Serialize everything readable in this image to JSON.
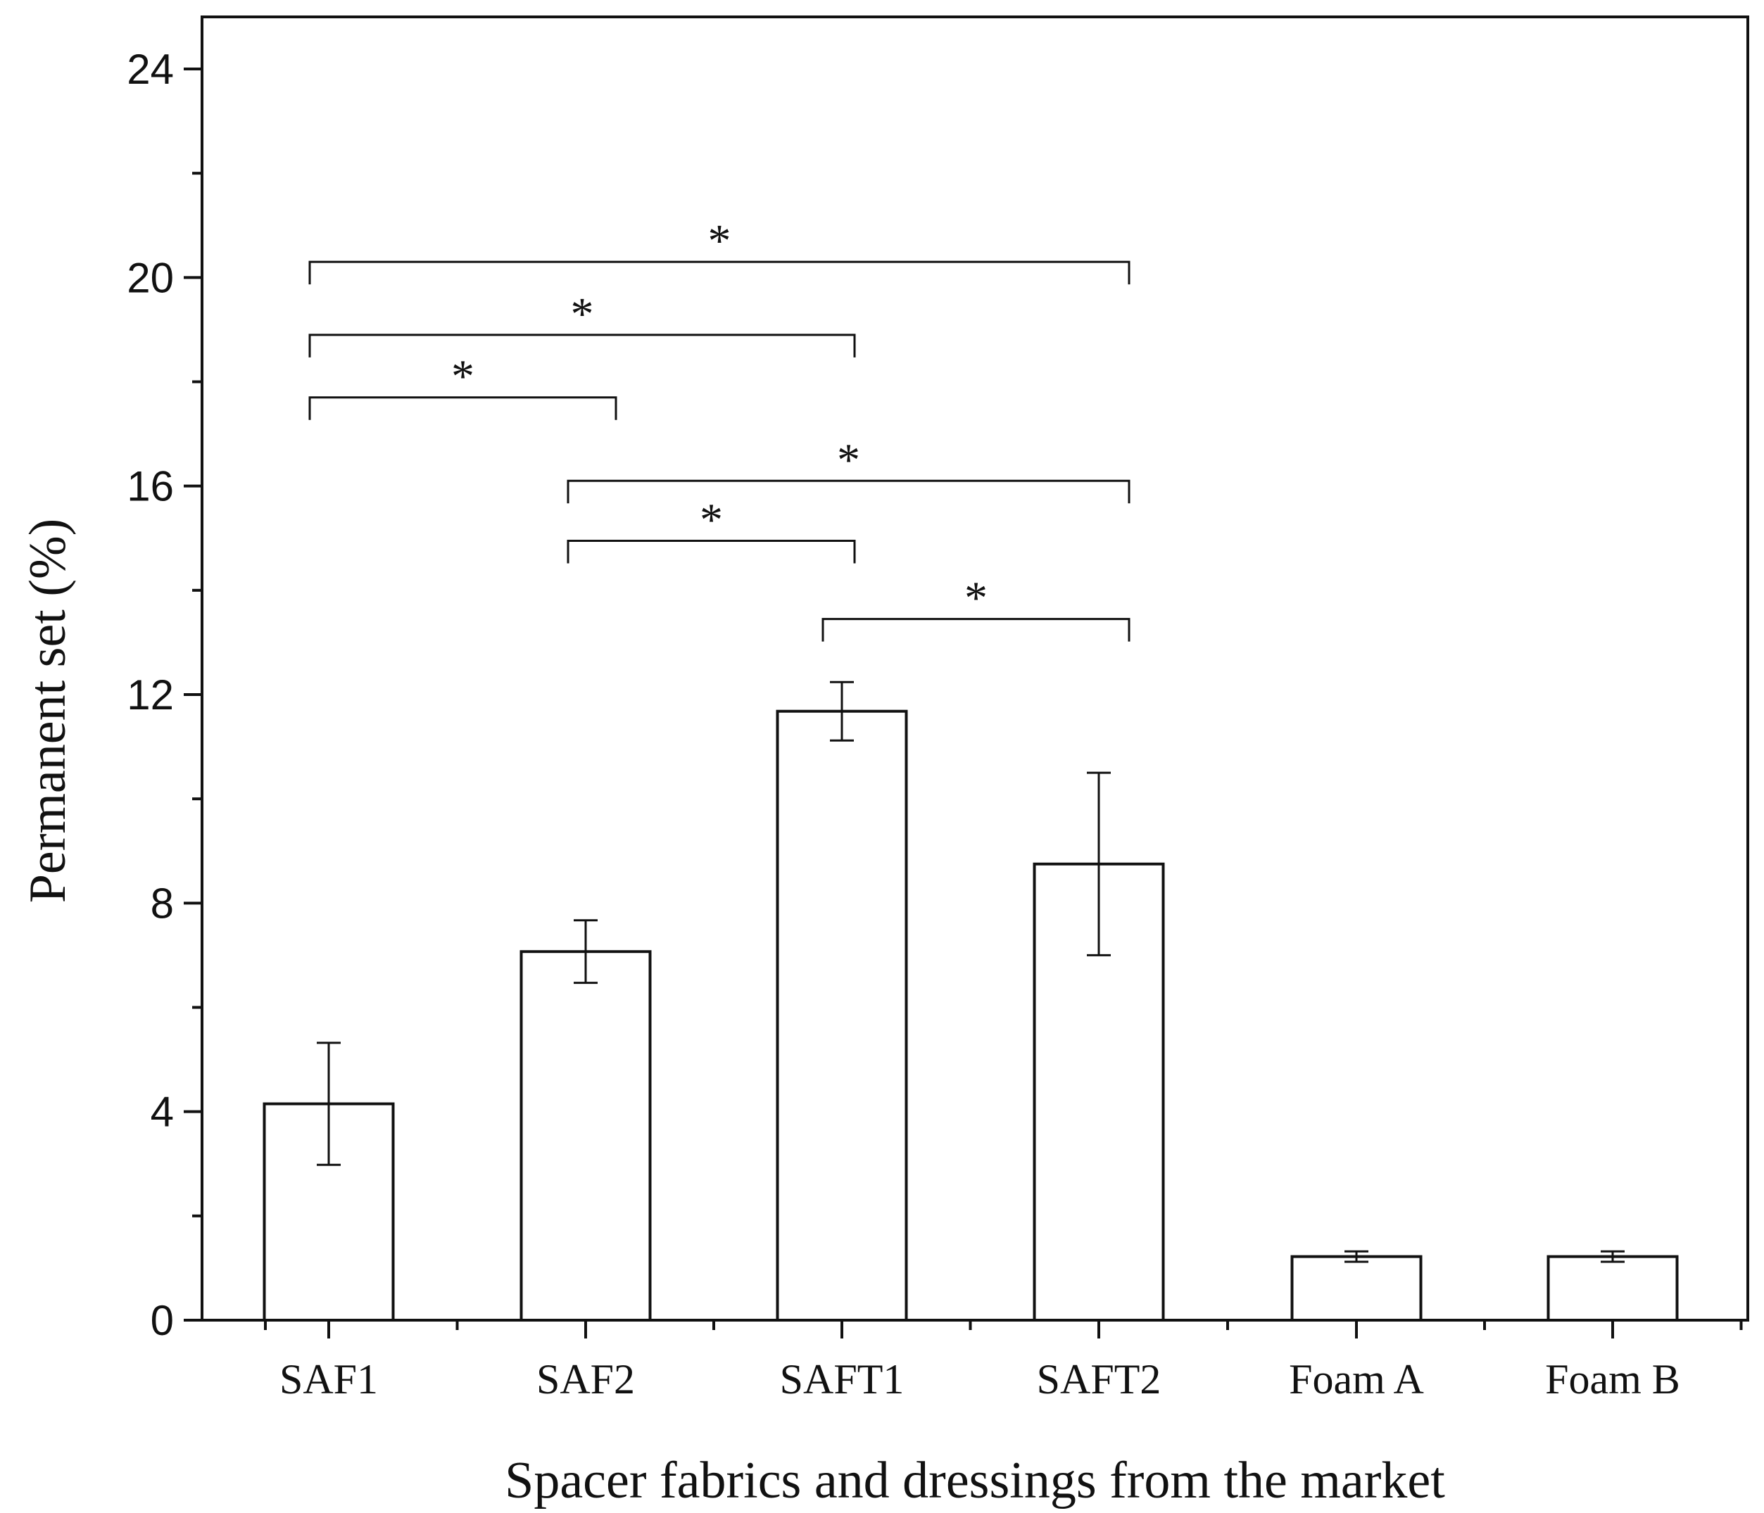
{
  "chart_data": {
    "type": "bar",
    "title": "",
    "xlabel": "Spacer fabrics and dressings from the market",
    "ylabel": "Permanent set (%)",
    "ylim": [
      0,
      25
    ],
    "yticks": [
      0,
      4,
      8,
      12,
      16,
      20,
      24
    ],
    "ytick_labels": [
      "0",
      "4",
      "8",
      "12",
      "16",
      "20",
      "24"
    ],
    "grid": false,
    "legend": "none",
    "bar_fill": "#ffffff",
    "bar_stroke": "#111111",
    "categories": [
      "SAF1",
      "SAF2",
      "SAFT1",
      "SAFT2",
      "Foam A",
      "Foam B"
    ],
    "values": [
      4.15,
      7.07,
      11.68,
      8.75,
      1.22,
      1.22
    ],
    "errors": [
      1.17,
      0.6,
      0.56,
      1.75,
      0.1,
      0.1
    ],
    "significance": [
      {
        "from": 0,
        "to": 3,
        "y": 20.3,
        "label": "*"
      },
      {
        "from": 0,
        "to": 2,
        "y": 18.9,
        "label": "*"
      },
      {
        "from": 0,
        "to": 1,
        "y": 17.7,
        "label": "*"
      },
      {
        "from": 1,
        "to": 3,
        "y": 16.1,
        "label": "*"
      },
      {
        "from": 1,
        "to": 2,
        "y": 14.95,
        "label": "*"
      },
      {
        "from": 2,
        "to": 3,
        "y": 13.45,
        "label": "*"
      }
    ]
  }
}
